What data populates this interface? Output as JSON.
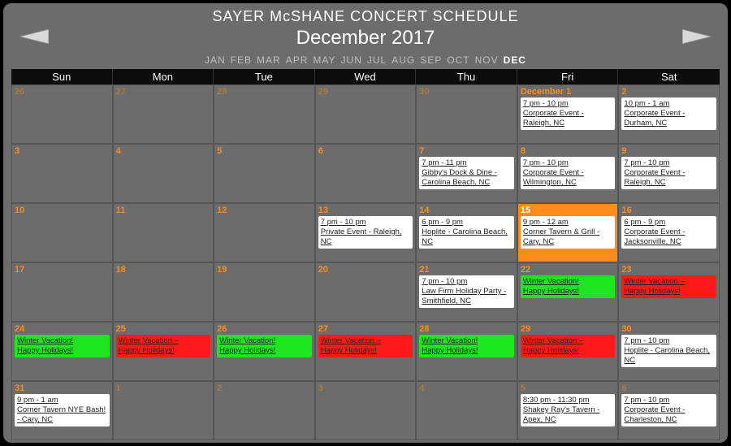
{
  "title": "SAYER McSHANE CONCERT SCHEDULE",
  "month_label": "December 2017",
  "months": [
    "JAN",
    "FEB",
    "MAR",
    "APR",
    "MAY",
    "JUN",
    "JUL",
    "AUG",
    "SEP",
    "OCT",
    "NOV",
    "DEC"
  ],
  "active_month_index": 11,
  "dow": [
    "Sun",
    "Mon",
    "Tue",
    "Wed",
    "Thu",
    "Fri",
    "Sat"
  ],
  "colors": {
    "background": "#6c6c6c",
    "accent": "#ff8c1a",
    "event_default_bg": "#ffffff",
    "event_green_bg": "#1ee61e",
    "event_red_bg": "#ff1a1a",
    "dow_bg": "#0c0c0c"
  },
  "cells": [
    {
      "day": "26",
      "other": true,
      "events": []
    },
    {
      "day": "27",
      "other": true,
      "events": []
    },
    {
      "day": "28",
      "other": true,
      "events": []
    },
    {
      "day": "29",
      "other": true,
      "events": []
    },
    {
      "day": "30",
      "other": true,
      "events": []
    },
    {
      "day": "December 1",
      "events": [
        {
          "time": "7 pm - 10 pm",
          "desc": "Corporate Event - Raleigh, NC"
        }
      ]
    },
    {
      "day": "2",
      "events": [
        {
          "time": "10 pm - 1 am",
          "desc": "Corporate Event - Durham, NC"
        }
      ]
    },
    {
      "day": "3",
      "events": []
    },
    {
      "day": "4",
      "events": []
    },
    {
      "day": "5",
      "events": []
    },
    {
      "day": "6",
      "events": []
    },
    {
      "day": "7",
      "events": [
        {
          "time": "7 pm - 11 pm",
          "desc": "Gibby's Dock & Dine - Carolina Beach, NC"
        }
      ]
    },
    {
      "day": "8",
      "events": [
        {
          "time": "7 pm - 10 pm",
          "desc": "Corporate Event - Wilmington, NC"
        }
      ]
    },
    {
      "day": "9",
      "events": [
        {
          "time": "7 pm - 10 pm",
          "desc": "Corporate Event - Raleigh, NC"
        }
      ]
    },
    {
      "day": "10",
      "events": []
    },
    {
      "day": "11",
      "events": []
    },
    {
      "day": "12",
      "events": []
    },
    {
      "day": "13",
      "events": [
        {
          "time": "7 pm - 10 pm",
          "desc": "Private Event - Raleigh, NC"
        }
      ]
    },
    {
      "day": "14",
      "events": [
        {
          "time": "6 pm - 9 pm",
          "desc": "Hoplite - Carolina Beach, NC"
        }
      ]
    },
    {
      "day": "15",
      "today": true,
      "events": [
        {
          "time": "9 pm - 12 am",
          "desc": "Corner Tavern & Grill - Cary, NC"
        }
      ]
    },
    {
      "day": "16",
      "events": [
        {
          "time": "6 pm - 9 pm",
          "desc": "Corporate Event - Jacksonville, NC"
        }
      ]
    },
    {
      "day": "17",
      "events": []
    },
    {
      "day": "18",
      "events": []
    },
    {
      "day": "19",
      "events": []
    },
    {
      "day": "20",
      "events": []
    },
    {
      "day": "21",
      "events": [
        {
          "time": "7 pm - 10 pm",
          "desc": "Law Firm Holiday Party - Smithfield, NC"
        }
      ]
    },
    {
      "day": "22",
      "events": [
        {
          "time": "Winter Vacation!",
          "desc": "Happy Holidays!",
          "style": "green"
        }
      ]
    },
    {
      "day": "23",
      "events": [
        {
          "time": "Winter Vacation –",
          "desc": "Happy Holidays!",
          "style": "red"
        }
      ]
    },
    {
      "day": "24",
      "events": [
        {
          "time": "Winter Vacation!",
          "desc": "Happy Holidays!",
          "style": "green"
        }
      ]
    },
    {
      "day": "25",
      "events": [
        {
          "time": "Winter Vacation –",
          "desc": "Happy Holidays!",
          "style": "red"
        }
      ]
    },
    {
      "day": "26",
      "events": [
        {
          "time": "Winter Vacation!",
          "desc": "Happy Holidays!",
          "style": "green"
        }
      ]
    },
    {
      "day": "27",
      "events": [
        {
          "time": "Winter Vacation –",
          "desc": "Happy Holidays!",
          "style": "red"
        }
      ]
    },
    {
      "day": "28",
      "events": [
        {
          "time": "Winter Vacation!",
          "desc": "Happy Holidays!",
          "style": "green"
        }
      ]
    },
    {
      "day": "29",
      "events": [
        {
          "time": "Winter Vacation –",
          "desc": "Happy Holidays!",
          "style": "red"
        }
      ]
    },
    {
      "day": "30",
      "events": [
        {
          "time": "7 pm - 10 pm",
          "desc": "Hoplite - Carolina Beach, NC"
        }
      ]
    },
    {
      "day": "31",
      "events": [
        {
          "time": "9 pm - 1 am",
          "desc": "Corner Tavern NYE Bash! - Cary, NC"
        }
      ]
    },
    {
      "day": "1",
      "other": true,
      "events": []
    },
    {
      "day": "2",
      "other": true,
      "events": []
    },
    {
      "day": "3",
      "other": true,
      "events": []
    },
    {
      "day": "4",
      "other": true,
      "events": []
    },
    {
      "day": "5",
      "other": true,
      "events": [
        {
          "time": "8:30 pm - 11:30 pm",
          "desc": "Shakey Ray's Tavern - Apex, NC"
        }
      ]
    },
    {
      "day": "6",
      "other": true,
      "events": [
        {
          "time": "7 pm - 10 pm",
          "desc": "Corporate Event - Charleston, NC"
        }
      ]
    }
  ]
}
